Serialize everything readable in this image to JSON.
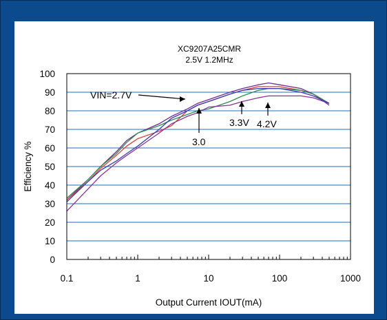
{
  "chart_data": {
    "type": "line",
    "title": "XC9207A25CMR",
    "subtitle": "2.5V 1.2MHz",
    "xlabel": "Output Current  IOUT(mA)",
    "ylabel": "Efficiency %",
    "xscale": "log",
    "xlim": [
      0.1,
      1000
    ],
    "ylim": [
      0,
      100
    ],
    "x_ticks": [
      0.1,
      1,
      10,
      100,
      1000
    ],
    "x_tick_labels": [
      "0.1",
      "1",
      "10",
      "100",
      "1000"
    ],
    "y_ticks": [
      0,
      10,
      20,
      30,
      40,
      50,
      60,
      70,
      80,
      90,
      100
    ],
    "y_tick_labels": [
      "0",
      "10",
      "20",
      "30",
      "40",
      "50",
      "60",
      "70",
      "80",
      "90",
      "100"
    ],
    "grid": "horizontal",
    "annotations": [
      {
        "text": "VIN=2.7V",
        "x": 8,
        "y": 84
      },
      {
        "text": "3.0",
        "x": 8,
        "y": 79
      },
      {
        "text": "3.3V",
        "x": 50,
        "y": 83
      },
      {
        "text": "4.2V",
        "x": 80,
        "y": 83
      }
    ],
    "series": [
      {
        "label_ref": "VIN=2.7V",
        "color": "#6a2b8f",
        "x": [
          0.1,
          0.2,
          0.3,
          0.5,
          0.7,
          1,
          2,
          3,
          5,
          7,
          10,
          20,
          30,
          50,
          70,
          100,
          200,
          300,
          500
        ],
        "y": [
          32,
          43,
          50,
          58,
          64,
          68,
          73,
          77,
          81,
          84,
          86,
          90,
          92,
          94,
          95,
          94,
          92,
          89,
          83
        ]
      },
      {
        "label_ref": "3.0",
        "color": "#d9403a",
        "x": [
          0.1,
          0.2,
          0.3,
          0.5,
          0.7,
          1,
          2,
          3,
          5,
          7,
          10,
          20,
          30,
          50,
          70,
          100,
          200,
          300,
          500
        ],
        "y": [
          32,
          42,
          49,
          56,
          61,
          65,
          69,
          72,
          80,
          83,
          85,
          89,
          91,
          93,
          93,
          93,
          91,
          89,
          84
        ]
      },
      {
        "label_ref": "3.3V",
        "color": "#2e8b4f",
        "x": [
          0.1,
          0.2,
          0.3,
          0.5,
          0.7,
          1,
          2,
          3,
          5,
          7,
          10,
          20,
          30,
          50,
          70,
          100,
          200,
          300,
          500
        ],
        "y": [
          33,
          43,
          50,
          57,
          63,
          68,
          72,
          75,
          78,
          80,
          81,
          85,
          88,
          91,
          92,
          92,
          91,
          89,
          84
        ]
      },
      {
        "label_ref": "4.2V",
        "color": "#8a2f9c",
        "x": [
          0.1,
          0.2,
          0.3,
          0.5,
          0.7,
          1,
          2,
          3,
          5,
          7,
          10,
          20,
          30,
          50,
          70,
          100,
          200,
          300,
          500
        ],
        "y": [
          26,
          38,
          45,
          52,
          56,
          60,
          68,
          73,
          77,
          79,
          82,
          83,
          85,
          87,
          88,
          88,
          88,
          87,
          84
        ]
      },
      {
        "label_ref": "",
        "color": "#3a3ab0",
        "x": [
          0.1,
          0.2,
          0.3,
          0.5,
          0.7,
          1,
          2,
          3,
          5,
          7,
          10,
          20,
          30,
          50,
          70,
          100,
          200,
          300,
          500
        ],
        "y": [
          31,
          42,
          48,
          53,
          57,
          61,
          70,
          76,
          80,
          83,
          85,
          89,
          91,
          92,
          92,
          92,
          90,
          88,
          84
        ]
      }
    ]
  }
}
